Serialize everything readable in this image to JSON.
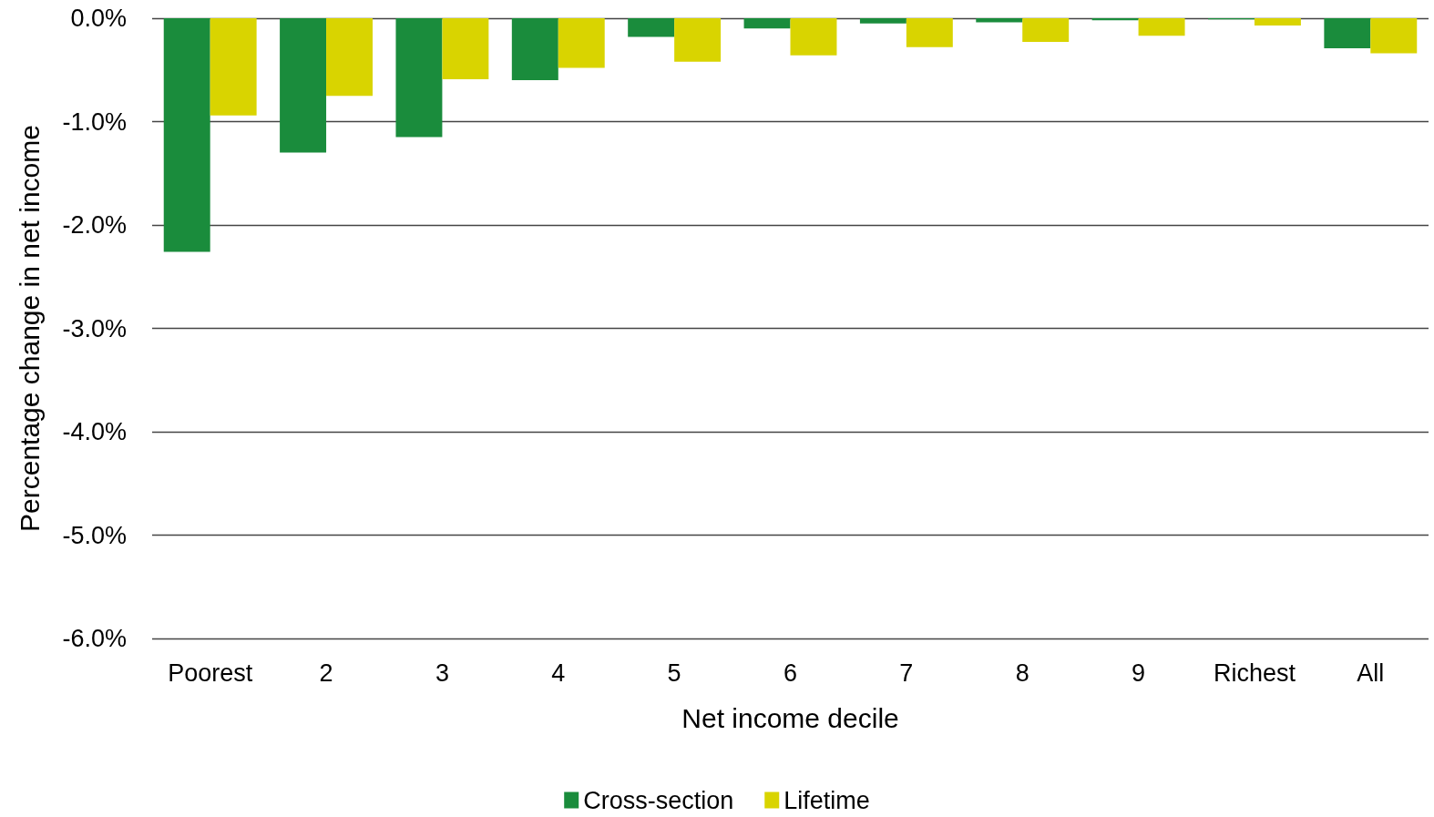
{
  "chart_data": {
    "type": "bar",
    "xlabel": "Net income decile",
    "ylabel": "Percentage change in net income",
    "categories": [
      "Poorest",
      "2",
      "3",
      "4",
      "5",
      "6",
      "7",
      "8",
      "9",
      "Richest",
      "All"
    ],
    "series": [
      {
        "name": "Cross-section",
        "color": "#1a8c3c",
        "values": [
          -2.26,
          -1.3,
          -1.15,
          -0.6,
          -0.18,
          -0.1,
          -0.05,
          -0.04,
          -0.02,
          -0.01,
          -0.29
        ]
      },
      {
        "name": "Lifetime",
        "color": "#d9d400",
        "values": [
          -0.94,
          -0.75,
          -0.59,
          -0.48,
          -0.42,
          -0.36,
          -0.28,
          -0.23,
          -0.17,
          -0.07,
          -0.34
        ]
      }
    ],
    "ylim": [
      -6,
      0
    ],
    "yticks": [
      {
        "value": -6,
        "label": "-6.0%"
      },
      {
        "value": -5,
        "label": "-5.0%"
      },
      {
        "value": -4,
        "label": "-4.0%"
      },
      {
        "value": -3,
        "label": "-3.0%"
      },
      {
        "value": -2,
        "label": "-2.0%"
      },
      {
        "value": -1,
        "label": "-1.0%"
      },
      {
        "value": 0,
        "label": "0.0%"
      }
    ],
    "grid": "y",
    "legend": "bottom"
  }
}
